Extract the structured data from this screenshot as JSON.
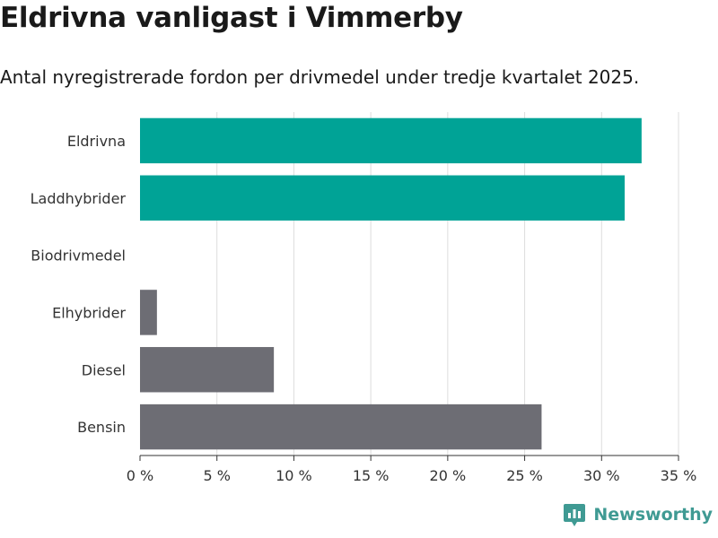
{
  "title": "Eldrivna vanligast i Vimmerby",
  "subtitle": "Antal nyregistrerade fordon per drivmedel under tredje kvartalet 2025.",
  "brand": {
    "name": "Newsworthy",
    "color": "#3f9a93",
    "logo_icon": "chart-bubble-icon"
  },
  "chart_data": {
    "type": "bar",
    "orientation": "horizontal",
    "title": "Eldrivna vanligast i Vimmerby",
    "subtitle": "Antal nyregistrerade fordon per drivmedel under tredje kvartalet 2025.",
    "categories": [
      "Eldrivna",
      "Laddhybrider",
      "Biodrivmedel",
      "Elhybrider",
      "Diesel",
      "Bensin"
    ],
    "values": [
      32.6,
      31.5,
      0,
      1.1,
      8.7,
      26.1
    ],
    "colors": [
      "#00a396",
      "#00a396",
      "#00a396",
      "#6d6d74",
      "#6d6d74",
      "#6d6d74"
    ],
    "xlim": [
      0,
      35
    ],
    "xticks": [
      0,
      5,
      10,
      15,
      20,
      25,
      30,
      35
    ],
    "xtick_labels": [
      "0 %",
      "5 %",
      "10 %",
      "15 %",
      "20 %",
      "25 %",
      "30 %",
      "35 %"
    ],
    "grid": true,
    "grid_color": "#dddddd"
  }
}
